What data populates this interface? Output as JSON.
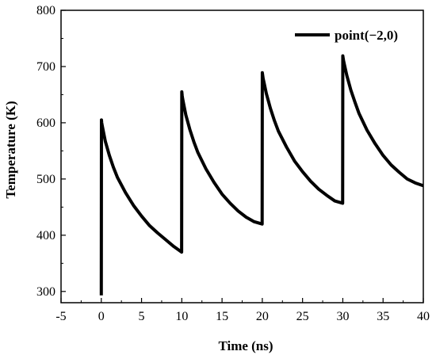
{
  "chart_data": {
    "type": "line",
    "xlabel": "Time (ns)",
    "ylabel": "Temperature (K)",
    "xlim": [
      -5,
      40
    ],
    "ylim": [
      280,
      800
    ],
    "x_ticks": [
      -5,
      0,
      5,
      10,
      15,
      20,
      25,
      30,
      35,
      40
    ],
    "y_ticks": [
      300,
      400,
      500,
      600,
      700,
      800
    ],
    "x_tick_labels": [
      "-5",
      "0",
      "5",
      "10",
      "15",
      "20",
      "25",
      "30",
      "35",
      "40"
    ],
    "y_tick_labels": [
      "300",
      "400",
      "500",
      "600",
      "700",
      "800"
    ],
    "legend_position": "top-right",
    "grid": false,
    "colors": {
      "series": "#000000",
      "axes": "#000000",
      "background": "#ffffff"
    },
    "series": [
      {
        "name": "point(−2,0)",
        "x": [
          0,
          0.02,
          0.05,
          0.1,
          0.25,
          0.5,
          1,
          1.5,
          2,
          3,
          4,
          5,
          6,
          7,
          8,
          9,
          9.98,
          10,
          10.05,
          10.1,
          10.25,
          10.5,
          11,
          11.5,
          12,
          13,
          14,
          15,
          16,
          17,
          18,
          19,
          19.98,
          20,
          20.05,
          20.1,
          20.25,
          20.5,
          21,
          21.5,
          22,
          23,
          24,
          25,
          26,
          27,
          28,
          29,
          29.98,
          30,
          30.05,
          30.1,
          30.25,
          30.5,
          31,
          31.5,
          32,
          33,
          34,
          35,
          36,
          37,
          38,
          39,
          40
        ],
        "y": [
          293,
          605,
          600,
          596,
          585,
          567,
          542,
          521,
          503,
          476,
          453,
          434,
          417,
          404,
          392,
          380,
          370,
          655,
          648,
          643,
          632,
          614,
          588,
          566,
          547,
          518,
          494,
          473,
          457,
          443,
          432,
          424,
          420,
          689,
          684,
          679,
          669,
          652,
          626,
          604,
          585,
          557,
          532,
          513,
          496,
          482,
          471,
          461,
          457,
          719,
          714,
          710,
          700,
          684,
          658,
          637,
          617,
          587,
          563,
          542,
          525,
          512,
          500,
          493,
          488
        ]
      }
    ]
  }
}
